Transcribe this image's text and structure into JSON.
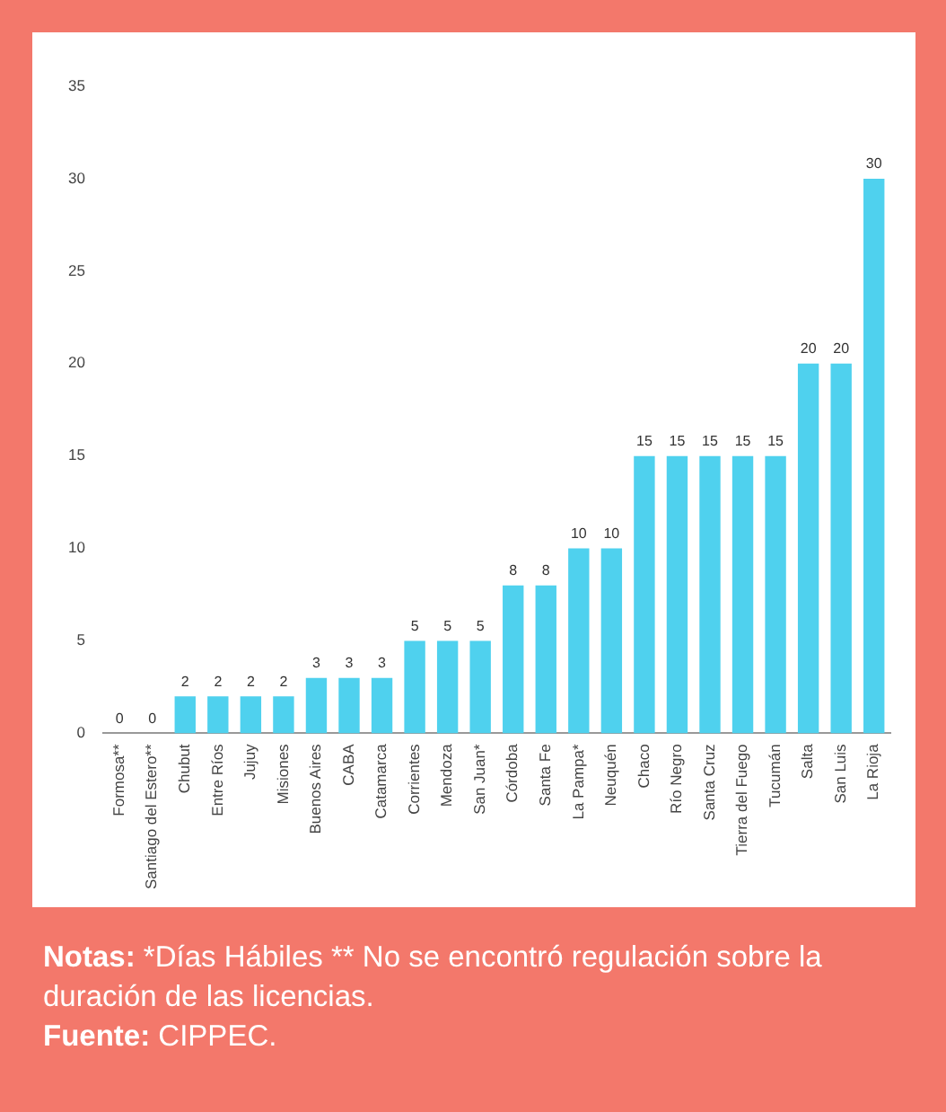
{
  "chart_data": {
    "type": "bar",
    "categories": [
      "Formosa**",
      "Santiago del Estero**",
      "Chubut",
      "Entre Ríos",
      "Jujuy",
      "Misiones",
      "Buenos Aires",
      "CABA",
      "Catamarca",
      "Corrientes",
      "Mendoza",
      "San Juan*",
      "Córdoba",
      "Santa Fe",
      "La Pampa*",
      "Neuquén",
      "Chaco",
      "Río Negro",
      "Santa Cruz",
      "Tierra del Fuego",
      "Tucumán",
      "Salta",
      "San Luis",
      "La Rioja"
    ],
    "values": [
      0,
      0,
      2,
      2,
      2,
      2,
      3,
      3,
      3,
      5,
      5,
      5,
      8,
      8,
      10,
      10,
      15,
      15,
      15,
      15,
      15,
      20,
      20,
      30
    ],
    "color": "#4fd1ee",
    "ylim": [
      0,
      35
    ],
    "yticks": [
      0,
      5,
      10,
      15,
      20,
      25,
      30,
      35
    ],
    "grid": false,
    "legend": false,
    "data_labels": true,
    "annotations": [
      "Notas: *Días Hábiles ** No se encontró regulación sobre la duración de las licencias.",
      "Fuente: CIPPEC."
    ]
  }
}
